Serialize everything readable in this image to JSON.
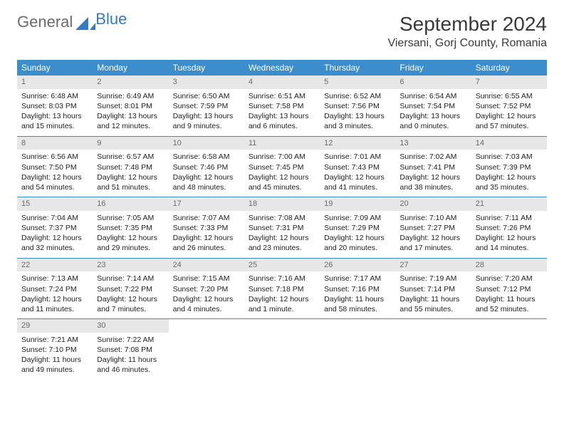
{
  "logo": {
    "text_gray": "General",
    "text_blue": "Blue"
  },
  "header": {
    "month_title": "September 2024",
    "location": "Viersani, Gorj County, Romania"
  },
  "colors": {
    "header_bg": "#3c8dcc",
    "header_fg": "#ffffff",
    "daynum_bg": "#e7e7e7",
    "daynum_fg": "#6b6b6b",
    "text": "#222222",
    "logo_gray": "#6b6b6b",
    "logo_blue": "#2f7dc4"
  },
  "day_labels": [
    "Sunday",
    "Monday",
    "Tuesday",
    "Wednesday",
    "Thursday",
    "Friday",
    "Saturday"
  ],
  "weeks": [
    [
      {
        "num": "1",
        "sunrise": "Sunrise: 6:48 AM",
        "sunset": "Sunset: 8:03 PM",
        "daylight": "Daylight: 13 hours and 15 minutes."
      },
      {
        "num": "2",
        "sunrise": "Sunrise: 6:49 AM",
        "sunset": "Sunset: 8:01 PM",
        "daylight": "Daylight: 13 hours and 12 minutes."
      },
      {
        "num": "3",
        "sunrise": "Sunrise: 6:50 AM",
        "sunset": "Sunset: 7:59 PM",
        "daylight": "Daylight: 13 hours and 9 minutes."
      },
      {
        "num": "4",
        "sunrise": "Sunrise: 6:51 AM",
        "sunset": "Sunset: 7:58 PM",
        "daylight": "Daylight: 13 hours and 6 minutes."
      },
      {
        "num": "5",
        "sunrise": "Sunrise: 6:52 AM",
        "sunset": "Sunset: 7:56 PM",
        "daylight": "Daylight: 13 hours and 3 minutes."
      },
      {
        "num": "6",
        "sunrise": "Sunrise: 6:54 AM",
        "sunset": "Sunset: 7:54 PM",
        "daylight": "Daylight: 13 hours and 0 minutes."
      },
      {
        "num": "7",
        "sunrise": "Sunrise: 6:55 AM",
        "sunset": "Sunset: 7:52 PM",
        "daylight": "Daylight: 12 hours and 57 minutes."
      }
    ],
    [
      {
        "num": "8",
        "sunrise": "Sunrise: 6:56 AM",
        "sunset": "Sunset: 7:50 PM",
        "daylight": "Daylight: 12 hours and 54 minutes."
      },
      {
        "num": "9",
        "sunrise": "Sunrise: 6:57 AM",
        "sunset": "Sunset: 7:48 PM",
        "daylight": "Daylight: 12 hours and 51 minutes."
      },
      {
        "num": "10",
        "sunrise": "Sunrise: 6:58 AM",
        "sunset": "Sunset: 7:46 PM",
        "daylight": "Daylight: 12 hours and 48 minutes."
      },
      {
        "num": "11",
        "sunrise": "Sunrise: 7:00 AM",
        "sunset": "Sunset: 7:45 PM",
        "daylight": "Daylight: 12 hours and 45 minutes."
      },
      {
        "num": "12",
        "sunrise": "Sunrise: 7:01 AM",
        "sunset": "Sunset: 7:43 PM",
        "daylight": "Daylight: 12 hours and 41 minutes."
      },
      {
        "num": "13",
        "sunrise": "Sunrise: 7:02 AM",
        "sunset": "Sunset: 7:41 PM",
        "daylight": "Daylight: 12 hours and 38 minutes."
      },
      {
        "num": "14",
        "sunrise": "Sunrise: 7:03 AM",
        "sunset": "Sunset: 7:39 PM",
        "daylight": "Daylight: 12 hours and 35 minutes."
      }
    ],
    [
      {
        "num": "15",
        "sunrise": "Sunrise: 7:04 AM",
        "sunset": "Sunset: 7:37 PM",
        "daylight": "Daylight: 12 hours and 32 minutes."
      },
      {
        "num": "16",
        "sunrise": "Sunrise: 7:05 AM",
        "sunset": "Sunset: 7:35 PM",
        "daylight": "Daylight: 12 hours and 29 minutes."
      },
      {
        "num": "17",
        "sunrise": "Sunrise: 7:07 AM",
        "sunset": "Sunset: 7:33 PM",
        "daylight": "Daylight: 12 hours and 26 minutes."
      },
      {
        "num": "18",
        "sunrise": "Sunrise: 7:08 AM",
        "sunset": "Sunset: 7:31 PM",
        "daylight": "Daylight: 12 hours and 23 minutes."
      },
      {
        "num": "19",
        "sunrise": "Sunrise: 7:09 AM",
        "sunset": "Sunset: 7:29 PM",
        "daylight": "Daylight: 12 hours and 20 minutes."
      },
      {
        "num": "20",
        "sunrise": "Sunrise: 7:10 AM",
        "sunset": "Sunset: 7:27 PM",
        "daylight": "Daylight: 12 hours and 17 minutes."
      },
      {
        "num": "21",
        "sunrise": "Sunrise: 7:11 AM",
        "sunset": "Sunset: 7:26 PM",
        "daylight": "Daylight: 12 hours and 14 minutes."
      }
    ],
    [
      {
        "num": "22",
        "sunrise": "Sunrise: 7:13 AM",
        "sunset": "Sunset: 7:24 PM",
        "daylight": "Daylight: 12 hours and 11 minutes."
      },
      {
        "num": "23",
        "sunrise": "Sunrise: 7:14 AM",
        "sunset": "Sunset: 7:22 PM",
        "daylight": "Daylight: 12 hours and 7 minutes."
      },
      {
        "num": "24",
        "sunrise": "Sunrise: 7:15 AM",
        "sunset": "Sunset: 7:20 PM",
        "daylight": "Daylight: 12 hours and 4 minutes."
      },
      {
        "num": "25",
        "sunrise": "Sunrise: 7:16 AM",
        "sunset": "Sunset: 7:18 PM",
        "daylight": "Daylight: 12 hours and 1 minute."
      },
      {
        "num": "26",
        "sunrise": "Sunrise: 7:17 AM",
        "sunset": "Sunset: 7:16 PM",
        "daylight": "Daylight: 11 hours and 58 minutes."
      },
      {
        "num": "27",
        "sunrise": "Sunrise: 7:19 AM",
        "sunset": "Sunset: 7:14 PM",
        "daylight": "Daylight: 11 hours and 55 minutes."
      },
      {
        "num": "28",
        "sunrise": "Sunrise: 7:20 AM",
        "sunset": "Sunset: 7:12 PM",
        "daylight": "Daylight: 11 hours and 52 minutes."
      }
    ],
    [
      {
        "num": "29",
        "sunrise": "Sunrise: 7:21 AM",
        "sunset": "Sunset: 7:10 PM",
        "daylight": "Daylight: 11 hours and 49 minutes."
      },
      {
        "num": "30",
        "sunrise": "Sunrise: 7:22 AM",
        "sunset": "Sunset: 7:08 PM",
        "daylight": "Daylight: 11 hours and 46 minutes."
      },
      {
        "empty": true
      },
      {
        "empty": true
      },
      {
        "empty": true
      },
      {
        "empty": true
      },
      {
        "empty": true
      }
    ]
  ]
}
